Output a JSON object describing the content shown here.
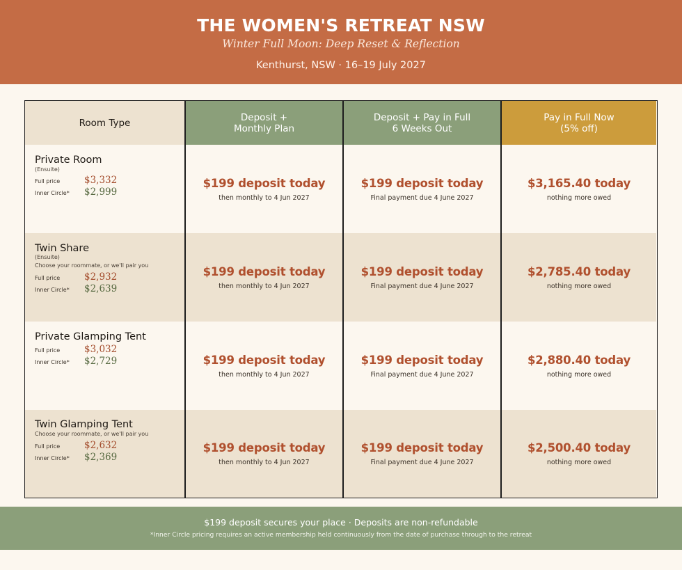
{
  "header": {
    "title": "THE WOMEN'S RETREAT NSW",
    "subtitle": "Winter Full Moon: Deep Reset & Reflection",
    "meta": "Kenthurst, NSW  ·  16–19 July 2027"
  },
  "table": {
    "headers": {
      "room": "Room Type",
      "monthly_l1": "Deposit +",
      "monthly_l2": "Monthly Plan",
      "sixweeks_l1": "Deposit + Pay in Full",
      "sixweeks_l2": "6 Weeks Out",
      "full_l1": "Pay in Full Now",
      "full_l2": "(5% off)"
    },
    "colors": {
      "header_green": "#8b9f7a",
      "header_gold": "#cc9c3c",
      "accent": "#b0502e",
      "banner": "#c46c45"
    },
    "labels": {
      "full_price": "Full price",
      "inner_circle": "Inner Circle*"
    },
    "rows": [
      {
        "name": "Private Room",
        "ensuite": "(Ensuite)",
        "note": "",
        "full_price": "$3,332",
        "inner_price": "$2,999",
        "monthly_big": "$199 deposit today",
        "monthly_small": "then monthly to 4 Jun 2027",
        "sixweeks_big": "$199 deposit today",
        "sixweeks_small": "Final payment due 4 June 2027",
        "full_big": "$3,165.40 today",
        "full_small": "nothing more owed"
      },
      {
        "name": "Twin Share",
        "ensuite": "(Ensuite)",
        "note": "Choose your roommate, or we'll pair you",
        "full_price": "$2,932",
        "inner_price": "$2,639",
        "monthly_big": "$199 deposit today",
        "monthly_small": "then monthly to 4 Jun 2027",
        "sixweeks_big": "$199 deposit today",
        "sixweeks_small": "Final payment due 4 June 2027",
        "full_big": "$2,785.40 today",
        "full_small": "nothing more owed"
      },
      {
        "name": "Private Glamping Tent",
        "ensuite": "",
        "note": "",
        "full_price": "$3,032",
        "inner_price": "$2,729",
        "monthly_big": "$199 deposit today",
        "monthly_small": "then monthly to 4 Jun 2027",
        "sixweeks_big": "$199 deposit today",
        "sixweeks_small": "Final payment due 4 June 2027",
        "full_big": "$2,880.40 today",
        "full_small": "nothing more owed"
      },
      {
        "name": "Twin Glamping Tent",
        "ensuite": "",
        "note": "Choose your roommate, or we'll pair you",
        "full_price": "$2,632",
        "inner_price": "$2,369",
        "monthly_big": "$199 deposit today",
        "monthly_small": "then monthly to 4 Jun 2027",
        "sixweeks_big": "$199 deposit today",
        "sixweeks_small": "Final payment due 4 June 2027",
        "full_big": "$2,500.40 today",
        "full_small": "nothing more owed"
      }
    ]
  },
  "footer": {
    "line1": "$199 deposit secures your place  ·  Deposits are non-refundable",
    "line2": "*Inner Circle pricing requires an active membership held continuously from the date of purchase through to the retreat"
  }
}
